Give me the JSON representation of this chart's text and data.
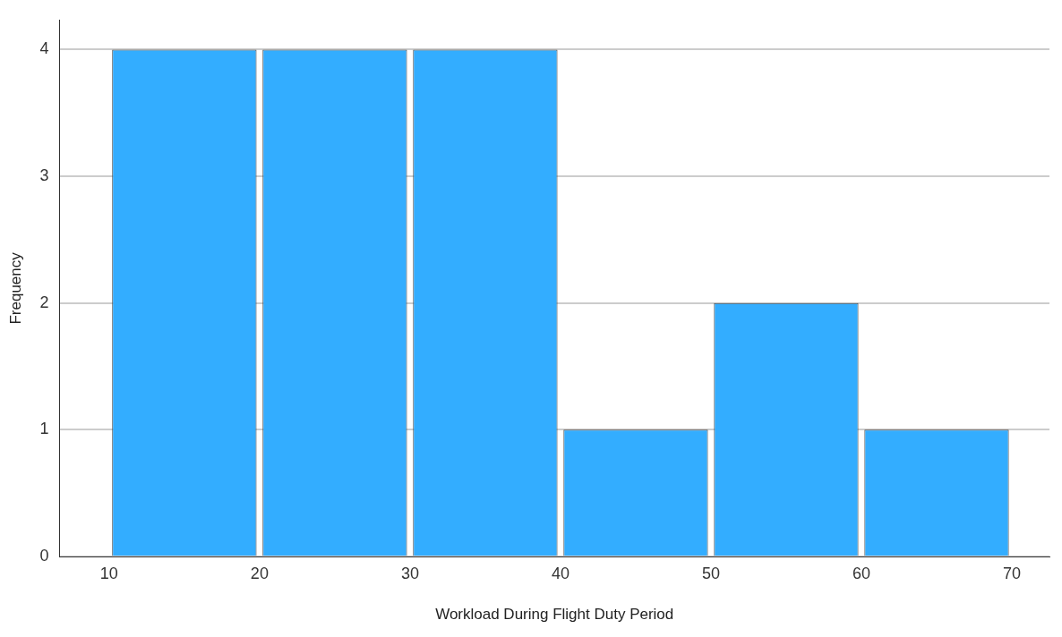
{
  "chart_data": {
    "type": "histogram",
    "xlabel": "Workload During Flight Duty Period",
    "ylabel": "Frequency",
    "bins": [
      10,
      20,
      30,
      40,
      50,
      60,
      70
    ],
    "values": [
      4,
      4,
      4,
      1,
      2,
      1
    ],
    "color": "#33adff",
    "xlim": [
      6.7,
      72.5
    ],
    "xticks": [
      10,
      20,
      30,
      40,
      50,
      60,
      70
    ],
    "ylim": [
      0,
      4.23
    ],
    "yticks": [
      0,
      1,
      2,
      3,
      4
    ],
    "grid": "y"
  }
}
